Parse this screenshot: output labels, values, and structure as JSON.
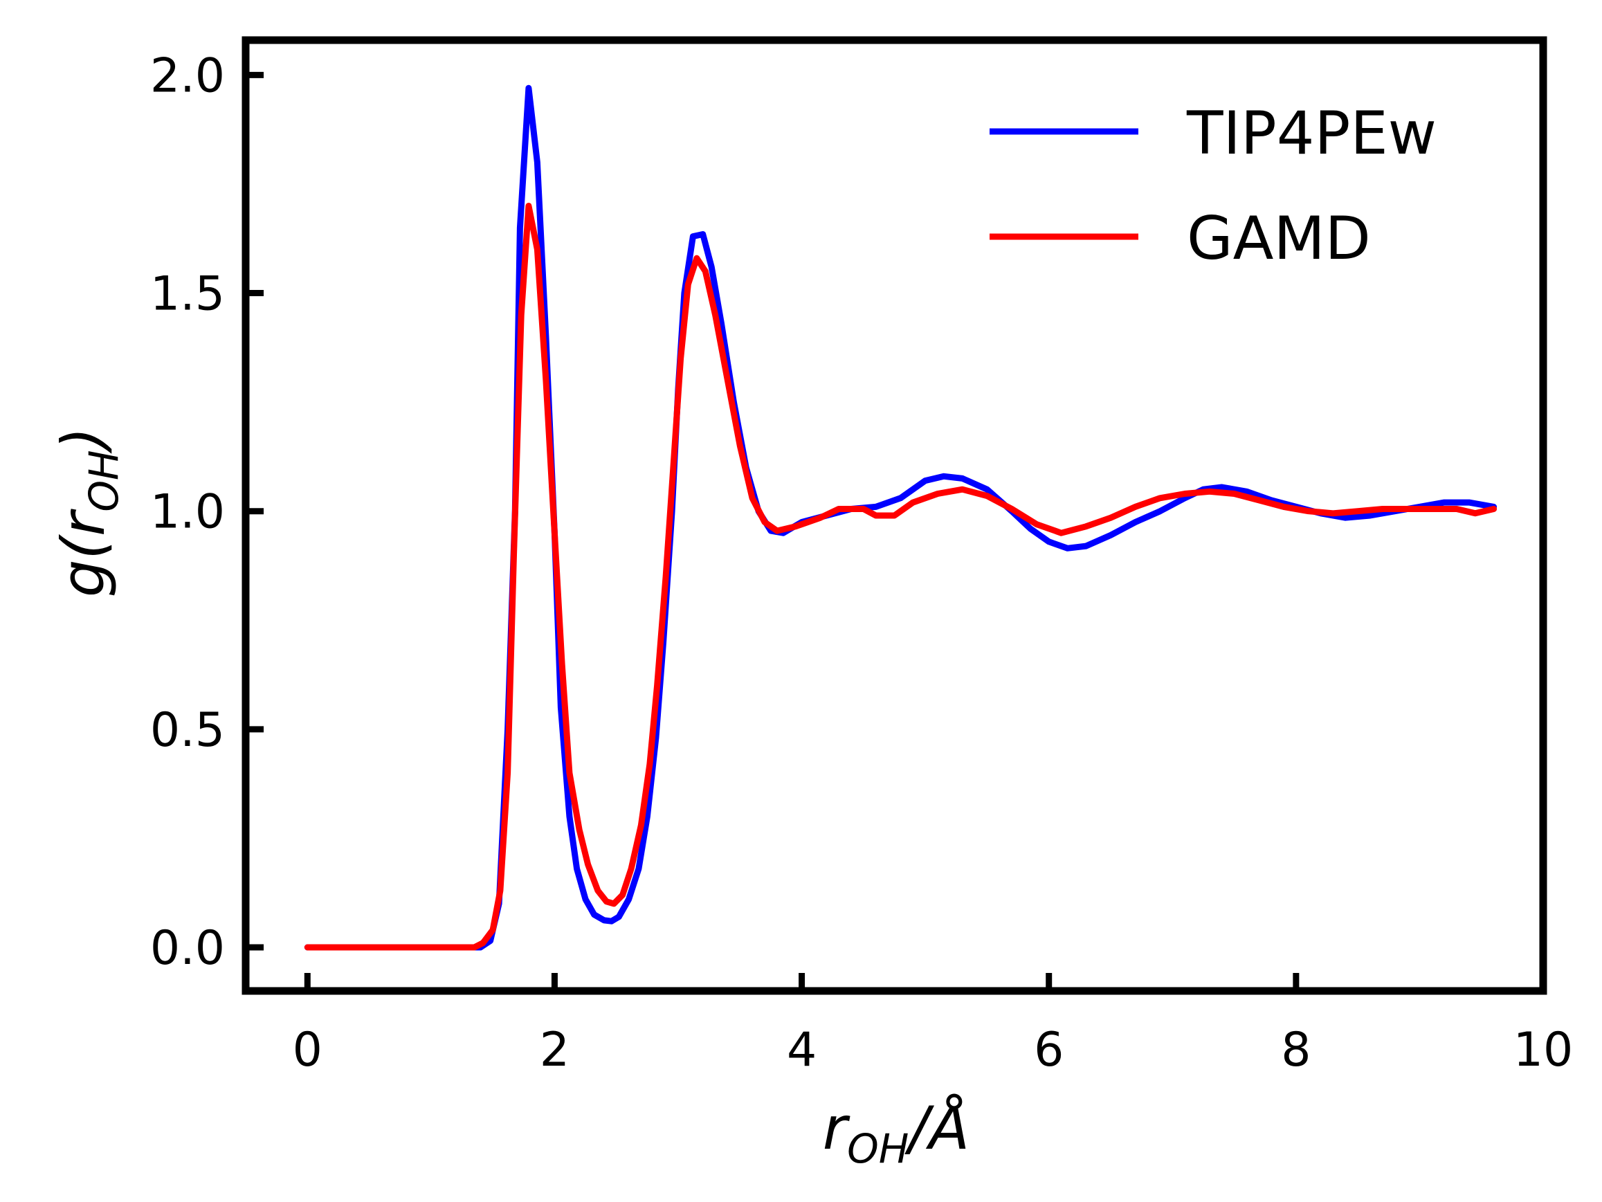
{
  "chart_data": {
    "type": "line",
    "xlabel": {
      "main": "r",
      "sub": "OH",
      "rest": "/Å"
    },
    "ylabel": {
      "pre": "g(",
      "main": "r",
      "sub": "OH",
      "post": ")"
    },
    "xlim": [
      -0.5,
      10.0
    ],
    "ylim": [
      -0.1,
      2.08
    ],
    "x_ticks": [
      0,
      2,
      4,
      6,
      8,
      10
    ],
    "y_ticks": [
      0.0,
      0.5,
      1.0,
      1.5,
      2.0
    ],
    "x_tick_labels": [
      "0",
      "2",
      "4",
      "6",
      "8",
      "10"
    ],
    "y_tick_labels": [
      "0.0",
      "0.5",
      "1.0",
      "1.5",
      "2.0"
    ],
    "grid": false,
    "legend_position": "top-right",
    "series": [
      {
        "name": "TIP4PEw",
        "color": "#0000ff",
        "points": [
          [
            0.0,
            0.0
          ],
          [
            1.0,
            0.0
          ],
          [
            1.4,
            0.0
          ],
          [
            1.48,
            0.015
          ],
          [
            1.55,
            0.1
          ],
          [
            1.62,
            0.5
          ],
          [
            1.68,
            1.0
          ],
          [
            1.72,
            1.65
          ],
          [
            1.79,
            1.97
          ],
          [
            1.86,
            1.8
          ],
          [
            1.93,
            1.4
          ],
          [
            2.0,
            0.95
          ],
          [
            2.05,
            0.55
          ],
          [
            2.12,
            0.3
          ],
          [
            2.18,
            0.18
          ],
          [
            2.25,
            0.11
          ],
          [
            2.32,
            0.075
          ],
          [
            2.4,
            0.062
          ],
          [
            2.46,
            0.06
          ],
          [
            2.52,
            0.07
          ],
          [
            2.6,
            0.11
          ],
          [
            2.68,
            0.18
          ],
          [
            2.75,
            0.3
          ],
          [
            2.82,
            0.48
          ],
          [
            2.88,
            0.7
          ],
          [
            2.95,
            1.0
          ],
          [
            3.0,
            1.28
          ],
          [
            3.05,
            1.5
          ],
          [
            3.12,
            1.63
          ],
          [
            3.2,
            1.635
          ],
          [
            3.27,
            1.56
          ],
          [
            3.35,
            1.43
          ],
          [
            3.45,
            1.25
          ],
          [
            3.55,
            1.1
          ],
          [
            3.65,
            1.0
          ],
          [
            3.75,
            0.955
          ],
          [
            3.85,
            0.95
          ],
          [
            4.0,
            0.975
          ],
          [
            4.2,
            0.99
          ],
          [
            4.4,
            1.005
          ],
          [
            4.6,
            1.01
          ],
          [
            4.8,
            1.03
          ],
          [
            5.0,
            1.07
          ],
          [
            5.15,
            1.08
          ],
          [
            5.3,
            1.075
          ],
          [
            5.5,
            1.05
          ],
          [
            5.7,
            1.0
          ],
          [
            5.85,
            0.96
          ],
          [
            6.0,
            0.93
          ],
          [
            6.15,
            0.915
          ],
          [
            6.3,
            0.92
          ],
          [
            6.5,
            0.945
          ],
          [
            6.7,
            0.975
          ],
          [
            6.9,
            1.0
          ],
          [
            7.1,
            1.03
          ],
          [
            7.25,
            1.05
          ],
          [
            7.4,
            1.055
          ],
          [
            7.6,
            1.045
          ],
          [
            7.8,
            1.025
          ],
          [
            8.0,
            1.01
          ],
          [
            8.2,
            0.995
          ],
          [
            8.4,
            0.985
          ],
          [
            8.6,
            0.99
          ],
          [
            8.8,
            1.0
          ],
          [
            9.0,
            1.01
          ],
          [
            9.2,
            1.02
          ],
          [
            9.4,
            1.02
          ],
          [
            9.6,
            1.01
          ]
        ]
      },
      {
        "name": "GAMD",
        "color": "#ff0000",
        "points": [
          [
            0.0,
            0.0
          ],
          [
            1.0,
            0.0
          ],
          [
            1.35,
            0.0
          ],
          [
            1.42,
            0.01
          ],
          [
            1.5,
            0.04
          ],
          [
            1.56,
            0.13
          ],
          [
            1.62,
            0.4
          ],
          [
            1.67,
            0.9
          ],
          [
            1.73,
            1.45
          ],
          [
            1.79,
            1.7
          ],
          [
            1.86,
            1.6
          ],
          [
            1.93,
            1.3
          ],
          [
            2.0,
            0.95
          ],
          [
            2.06,
            0.65
          ],
          [
            2.12,
            0.4
          ],
          [
            2.2,
            0.27
          ],
          [
            2.27,
            0.19
          ],
          [
            2.35,
            0.13
          ],
          [
            2.42,
            0.105
          ],
          [
            2.48,
            0.1
          ],
          [
            2.55,
            0.12
          ],
          [
            2.62,
            0.18
          ],
          [
            2.7,
            0.28
          ],
          [
            2.77,
            0.42
          ],
          [
            2.83,
            0.6
          ],
          [
            2.9,
            0.85
          ],
          [
            2.96,
            1.1
          ],
          [
            3.02,
            1.35
          ],
          [
            3.08,
            1.52
          ],
          [
            3.15,
            1.58
          ],
          [
            3.22,
            1.55
          ],
          [
            3.3,
            1.45
          ],
          [
            3.4,
            1.3
          ],
          [
            3.5,
            1.15
          ],
          [
            3.6,
            1.03
          ],
          [
            3.7,
            0.975
          ],
          [
            3.8,
            0.955
          ],
          [
            3.95,
            0.965
          ],
          [
            4.15,
            0.985
          ],
          [
            4.3,
            1.005
          ],
          [
            4.5,
            1.005
          ],
          [
            4.6,
            0.99
          ],
          [
            4.75,
            0.99
          ],
          [
            4.9,
            1.02
          ],
          [
            5.1,
            1.04
          ],
          [
            5.3,
            1.05
          ],
          [
            5.5,
            1.035
          ],
          [
            5.7,
            1.005
          ],
          [
            5.9,
            0.97
          ],
          [
            6.1,
            0.95
          ],
          [
            6.3,
            0.965
          ],
          [
            6.5,
            0.985
          ],
          [
            6.7,
            1.01
          ],
          [
            6.9,
            1.03
          ],
          [
            7.1,
            1.04
          ],
          [
            7.3,
            1.045
          ],
          [
            7.5,
            1.04
          ],
          [
            7.7,
            1.025
          ],
          [
            7.9,
            1.01
          ],
          [
            8.1,
            1.0
          ],
          [
            8.3,
            0.995
          ],
          [
            8.5,
            1.0
          ],
          [
            8.7,
            1.005
          ],
          [
            8.9,
            1.005
          ],
          [
            9.1,
            1.005
          ],
          [
            9.3,
            1.005
          ],
          [
            9.45,
            0.995
          ],
          [
            9.6,
            1.005
          ]
        ]
      }
    ]
  }
}
